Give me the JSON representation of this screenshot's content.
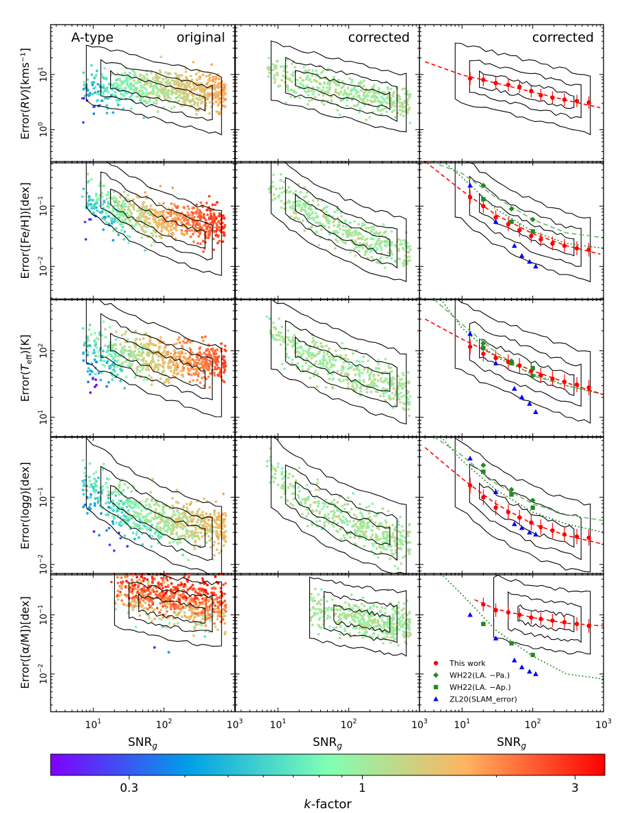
{
  "figure": {
    "title": "A-type",
    "x_label": "SNR",
    "x_label_sub": "g",
    "x_ticks": [
      "10",
      "10",
      "10"
    ],
    "x_tick_exps": [
      "1",
      "2",
      "3"
    ],
    "colorbar": {
      "label_italic": "k",
      "label_rest": "-factor",
      "ticks": [
        "0.3",
        "1",
        "3"
      ],
      "range": [
        0.2,
        3.5
      ],
      "colors": [
        "#8000ff",
        "#00a0e8",
        "#80ffb4",
        "#ffb360",
        "#ff0000"
      ]
    }
  },
  "chart_data": {
    "type": "scatter",
    "xlim": [
      2.5,
      1000
    ],
    "x_scale": "log",
    "column_titles": [
      "original",
      "corrected",
      "corrected"
    ],
    "legend": {
      "placement": "lower-right of bottom-right panel",
      "entries": [
        {
          "label": "This work",
          "color": "#ff0000",
          "marker": "circle"
        },
        {
          "label": "WH22(LA. −Pa.)",
          "color": "#228b22",
          "marker": "diamond"
        },
        {
          "label": "WH22(LA. −Ap.)",
          "color": "#228b22",
          "marker": "square"
        },
        {
          "label": "ZL20(SLAM_error)",
          "color": "#0000ff",
          "marker": "triangle"
        }
      ]
    },
    "rows": [
      {
        "name": "rv",
        "ylabel_pre": "Error(",
        "ylabel_var": "RV",
        "ylabel_post": ")[kms⁻¹]",
        "ylim": [
          0.25,
          80
        ],
        "y_ticks": [
          {
            "value": 1,
            "base": "10",
            "exp": "0"
          },
          {
            "value": 10,
            "base": "10",
            "exp": "1"
          }
        ],
        "this_work": [
          [
            13,
            8.5
          ],
          [
            20,
            8
          ],
          [
            30,
            7
          ],
          [
            45,
            6.5
          ],
          [
            65,
            6
          ],
          [
            95,
            5
          ],
          [
            130,
            4.2
          ],
          [
            190,
            3.8
          ],
          [
            280,
            3.5
          ],
          [
            420,
            3.3
          ],
          [
            620,
            3.1
          ]
        ],
        "this_work_fit": [
          [
            3,
            17
          ],
          [
            10,
            9.8
          ],
          [
            30,
            7
          ],
          [
            100,
            4.8
          ],
          [
            300,
            3.4
          ],
          [
            900,
            2.5
          ]
        ],
        "wh22_pa": [],
        "wh22_ap": [],
        "zl20": [],
        "wh22_pa_curve": [],
        "wh22_ap_curve": [],
        "original_k": 1.4
      },
      {
        "name": "feh",
        "ylabel_pre": "Error([Fe/H])[dex]",
        "ylabel_var": "",
        "ylabel_post": "",
        "ylim": [
          0.0028,
          0.55
        ],
        "y_ticks": [
          {
            "value": 0.01,
            "base": "10",
            "exp": "−2"
          },
          {
            "value": 0.1,
            "base": "10",
            "exp": "−1"
          }
        ],
        "this_work": [
          [
            13,
            0.14
          ],
          [
            20,
            0.1
          ],
          [
            30,
            0.065
          ],
          [
            45,
            0.05
          ],
          [
            65,
            0.04
          ],
          [
            95,
            0.032
          ],
          [
            130,
            0.028
          ],
          [
            190,
            0.024
          ],
          [
            280,
            0.022
          ],
          [
            420,
            0.02
          ],
          [
            620,
            0.019
          ]
        ],
        "this_work_fit": [
          [
            3,
            0.55
          ],
          [
            10,
            0.18
          ],
          [
            30,
            0.072
          ],
          [
            100,
            0.035
          ],
          [
            300,
            0.022
          ],
          [
            900,
            0.016
          ]
        ],
        "wh22_pa": [
          [
            20,
            0.22
          ],
          [
            50,
            0.09
          ],
          [
            100,
            0.06
          ]
        ],
        "wh22_ap": [
          [
            20,
            0.13
          ],
          [
            50,
            0.055
          ],
          [
            100,
            0.038
          ]
        ],
        "zl20": [
          [
            13,
            0.22
          ],
          [
            30,
            0.055
          ],
          [
            55,
            0.022
          ],
          [
            70,
            0.015
          ],
          [
            90,
            0.012
          ],
          [
            110,
            0.01
          ]
        ],
        "wh22_pa_curve": [
          [
            3,
            0.6
          ],
          [
            10,
            0.35
          ],
          [
            30,
            0.14
          ],
          [
            100,
            0.06
          ],
          [
            300,
            0.036
          ],
          [
            1000,
            0.03
          ]
        ],
        "wh22_ap_curve": [
          [
            5,
            0.6
          ],
          [
            10,
            0.3
          ],
          [
            30,
            0.09
          ],
          [
            100,
            0.038
          ],
          [
            300,
            0.024
          ],
          [
            1000,
            0.02
          ]
        ],
        "original_k": 2.6
      },
      {
        "name": "teff",
        "ylabel_pre": "Error(",
        "ylabel_var": "T",
        "ylabel_sub": "eff",
        "ylabel_post": ")[K]",
        "ylim": [
          5,
          600
        ],
        "y_ticks": [
          {
            "value": 10,
            "base": "10",
            "exp": "1"
          },
          {
            "value": 100,
            "base": "10",
            "exp": "2"
          }
        ],
        "this_work": [
          [
            13,
            115
          ],
          [
            20,
            90
          ],
          [
            30,
            78
          ],
          [
            45,
            68
          ],
          [
            65,
            60
          ],
          [
            95,
            50
          ],
          [
            130,
            43
          ],
          [
            190,
            38
          ],
          [
            280,
            34
          ],
          [
            420,
            31
          ],
          [
            620,
            28
          ]
        ],
        "this_work_fit": [
          [
            3,
            300
          ],
          [
            10,
            150
          ],
          [
            30,
            85
          ],
          [
            100,
            50
          ],
          [
            300,
            33
          ],
          [
            1000,
            22
          ]
        ],
        "wh22_pa": [
          [
            20,
            130
          ],
          [
            50,
            70
          ],
          [
            100,
            42
          ]
        ],
        "wh22_ap": [
          [
            20,
            110
          ],
          [
            50,
            65
          ],
          [
            100,
            55
          ]
        ],
        "zl20": [
          [
            13,
            180
          ],
          [
            30,
            65
          ],
          [
            55,
            27
          ],
          [
            70,
            20
          ],
          [
            90,
            16
          ],
          [
            110,
            12
          ]
        ],
        "wh22_pa_curve": [
          [
            4,
            600
          ],
          [
            10,
            250
          ],
          [
            30,
            95
          ],
          [
            100,
            42
          ],
          [
            300,
            30
          ],
          [
            1000,
            22
          ]
        ],
        "wh22_ap_curve": [
          [
            5,
            600
          ],
          [
            10,
            220
          ],
          [
            30,
            80
          ],
          [
            100,
            45
          ],
          [
            300,
            30
          ],
          [
            1000,
            22
          ]
        ],
        "original_k": 2.3
      },
      {
        "name": "logg",
        "ylabel_pre": "Error(log",
        "ylabel_var": "g",
        "ylabel_post": ")[dex]",
        "ylim": [
          0.007,
          0.8
        ],
        "y_ticks": [
          {
            "value": 0.01,
            "base": "10",
            "exp": "−2"
          },
          {
            "value": 0.1,
            "base": "10",
            "exp": "−1"
          }
        ],
        "this_work": [
          [
            13,
            0.15
          ],
          [
            20,
            0.1
          ],
          [
            30,
            0.07
          ],
          [
            45,
            0.06
          ],
          [
            65,
            0.05
          ],
          [
            95,
            0.042
          ],
          [
            130,
            0.036
          ],
          [
            190,
            0.032
          ],
          [
            280,
            0.028
          ],
          [
            420,
            0.026
          ],
          [
            620,
            0.025
          ]
        ],
        "this_work_fit": [
          [
            3,
            0.55
          ],
          [
            10,
            0.19
          ],
          [
            30,
            0.08
          ],
          [
            100,
            0.04
          ],
          [
            300,
            0.027
          ],
          [
            1000,
            0.02
          ]
        ],
        "wh22_pa": [
          [
            20,
            0.3
          ],
          [
            50,
            0.13
          ],
          [
            100,
            0.09
          ]
        ],
        "wh22_ap": [
          [
            20,
            0.24
          ],
          [
            50,
            0.11
          ],
          [
            100,
            0.07
          ]
        ],
        "zl20": [
          [
            13,
            0.38
          ],
          [
            30,
            0.12
          ],
          [
            55,
            0.04
          ],
          [
            70,
            0.035
          ],
          [
            90,
            0.03
          ],
          [
            110,
            0.028
          ]
        ],
        "wh22_pa_curve": [
          [
            4,
            0.8
          ],
          [
            10,
            0.42
          ],
          [
            30,
            0.16
          ],
          [
            100,
            0.08
          ],
          [
            300,
            0.055
          ],
          [
            1000,
            0.045
          ]
        ],
        "wh22_ap_curve": [
          [
            5,
            0.8
          ],
          [
            10,
            0.35
          ],
          [
            30,
            0.13
          ],
          [
            100,
            0.06
          ],
          [
            300,
            0.04
          ],
          [
            1000,
            0.03
          ]
        ],
        "original_k": 1.4
      },
      {
        "name": "alpham",
        "ylabel_pre": "Error([α/M])[dex]",
        "ylabel_var": "",
        "ylabel_post": "",
        "ylim": [
          0.0023,
          0.5
        ],
        "y_ticks": [
          {
            "value": 0.01,
            "base": "10",
            "exp": "−2"
          },
          {
            "value": 0.1,
            "base": "10",
            "exp": "−1"
          }
        ],
        "this_work": [
          [
            20,
            0.15
          ],
          [
            30,
            0.12
          ],
          [
            45,
            0.11
          ],
          [
            65,
            0.1
          ],
          [
            95,
            0.09
          ],
          [
            130,
            0.085
          ],
          [
            190,
            0.08
          ],
          [
            280,
            0.075
          ],
          [
            420,
            0.07
          ],
          [
            620,
            0.065
          ]
        ],
        "this_work_fit": [
          [
            15,
            0.18
          ],
          [
            30,
            0.125
          ],
          [
            100,
            0.09
          ],
          [
            300,
            0.072
          ],
          [
            1000,
            0.065
          ]
        ],
        "wh22_pa": [],
        "wh22_ap": [
          [
            20,
            0.07
          ],
          [
            50,
            0.033
          ],
          [
            100,
            0.021
          ]
        ],
        "zl20": [
          [
            13,
            0.1
          ],
          [
            30,
            0.04
          ],
          [
            55,
            0.017
          ],
          [
            70,
            0.013
          ],
          [
            90,
            0.011
          ],
          [
            110,
            0.01
          ]
        ],
        "wh22_pa_curve": [],
        "wh22_ap_curve": [
          [
            5,
            0.5
          ],
          [
            10,
            0.22
          ],
          [
            30,
            0.055
          ],
          [
            100,
            0.02
          ],
          [
            300,
            0.01
          ],
          [
            1000,
            0.0082
          ]
        ],
        "original_k": 3.1
      }
    ]
  }
}
